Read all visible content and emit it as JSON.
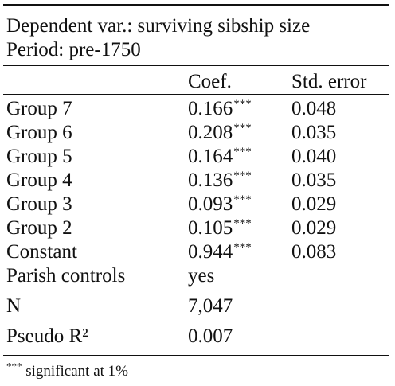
{
  "header": {
    "line1": "Dependent var.: surviving sibship size",
    "line2": "Period: pre-1750"
  },
  "columns": {
    "coef": "Coef.",
    "se": "Std. error"
  },
  "rows": [
    {
      "label": "Group 7",
      "coef": "0.166",
      "stars": "***",
      "se": "0.048"
    },
    {
      "label": "Group 6",
      "coef": "0.208",
      "stars": "***",
      "se": "0.035"
    },
    {
      "label": "Group 5",
      "coef": "0.164",
      "stars": "***",
      "se": "0.040"
    },
    {
      "label": "Group 4",
      "coef": "0.136",
      "stars": "***",
      "se": "0.035"
    },
    {
      "label": "Group 3",
      "coef": "0.093",
      "stars": "***",
      "se": "0.029"
    },
    {
      "label": "Group 2",
      "coef": "0.105",
      "stars": "***",
      "se": "0.029"
    },
    {
      "label": "Constant",
      "coef": "0.944",
      "stars": "***",
      "se": "0.083"
    }
  ],
  "extra_rows": [
    {
      "label": "Parish controls",
      "value": "yes"
    },
    {
      "label": "N",
      "value": "7,047"
    },
    {
      "label": "Pseudo R²",
      "value": "0.007"
    }
  ],
  "footnote": {
    "stars": "***",
    "text": " significant at 1%"
  }
}
